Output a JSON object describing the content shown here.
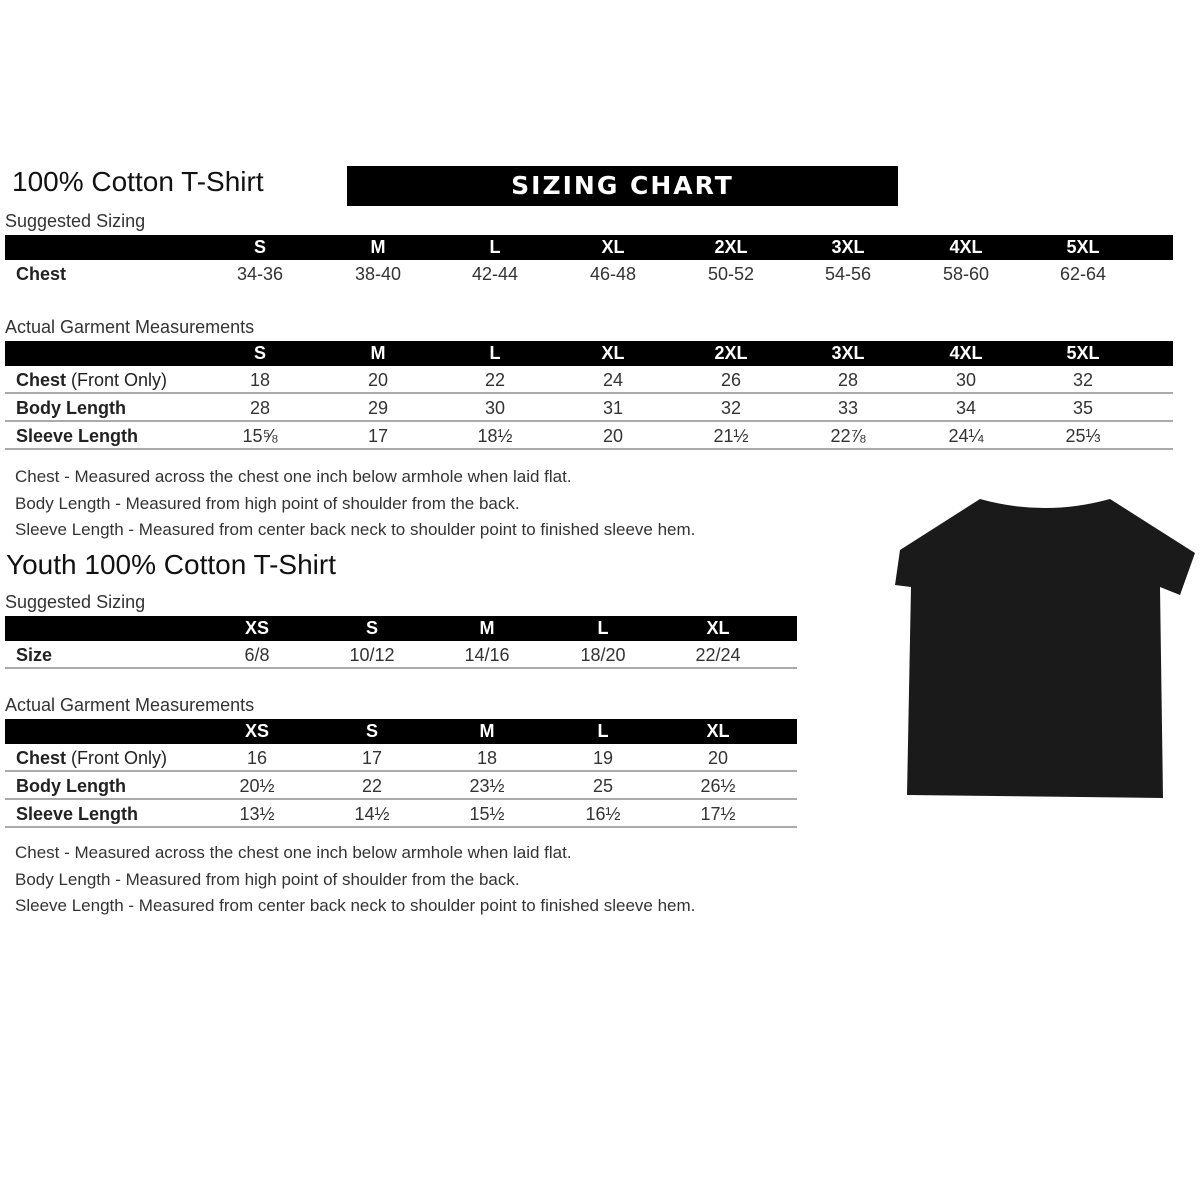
{
  "adult": {
    "title": "100% Cotton T-Shirt",
    "banner": "SIZING CHART",
    "suggested_label": "Suggested Sizing",
    "sizes": [
      "S",
      "M",
      "L",
      "XL",
      "2XL",
      "3XL",
      "4XL",
      "5XL"
    ],
    "chest_label": "Chest",
    "chest": [
      "34-36",
      "38-40",
      "42-44",
      "46-48",
      "50-52",
      "54-56",
      "58-60",
      "62-64"
    ],
    "actual_label": "Actual Garment Measurements",
    "rows": [
      {
        "label": "Chest",
        "label_note": " (Front Only)",
        "values": [
          "18",
          "20",
          "22",
          "24",
          "26",
          "28",
          "30",
          "32"
        ]
      },
      {
        "label": "Body Length",
        "label_note": "",
        "values": [
          "28",
          "29",
          "30",
          "31",
          "32",
          "33",
          "34",
          "35"
        ]
      },
      {
        "label": "Sleeve Length",
        "label_note": "",
        "values": [
          "15⅝",
          "17",
          "18½",
          "20",
          "21½",
          "22⅞",
          "24¼",
          "25⅓"
        ]
      }
    ],
    "notes": [
      "Chest - Measured across the chest one inch below armhole when laid flat.",
      "Body Length - Measured from high point of shoulder from the back.",
      "Sleeve Length - Measured from center back neck to shoulder point to finished sleeve hem."
    ]
  },
  "youth": {
    "title": "Youth 100% Cotton T-Shirt",
    "suggested_label": "Suggested Sizing",
    "sizes": [
      "XS",
      "S",
      "M",
      "L",
      "XL"
    ],
    "size_label": "Size",
    "size_values": [
      "6/8",
      "10/12",
      "14/16",
      "18/20",
      "22/24"
    ],
    "actual_label": "Actual Garment Measurements",
    "rows": [
      {
        "label": "Chest",
        "label_note": " (Front Only)",
        "values": [
          "16",
          "17",
          "18",
          "19",
          "20"
        ]
      },
      {
        "label": "Body Length",
        "label_note": "",
        "values": [
          "20½",
          "22",
          "23½",
          "25",
          "26½"
        ]
      },
      {
        "label": "Sleeve Length",
        "label_note": "",
        "values": [
          "13½",
          "14½",
          "15½",
          "16½",
          "17½"
        ]
      }
    ],
    "notes": [
      "Chest - Measured across the chest one inch below armhole when laid flat.",
      "Body Length - Measured from high point of shoulder from the back.",
      "Sleeve Length - Measured from center back neck to shoulder point to finished sleeve hem."
    ]
  },
  "tshirt_color": "#1a1a1a"
}
